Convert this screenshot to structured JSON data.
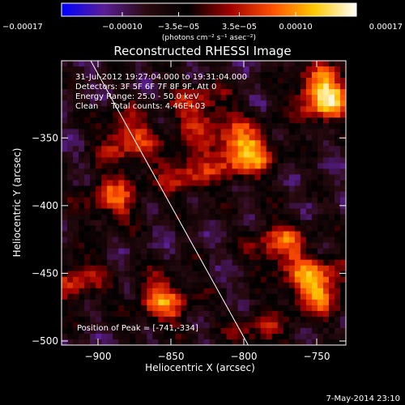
{
  "chart_data": {
    "type": "heatmap",
    "title": "Reconstructed RHESSI Image",
    "xlabel": "Heliocentric X (arcsec)",
    "ylabel": "Heliocentric Y (arcsec)",
    "xlim": [
      -925,
      -730
    ],
    "ylim": [
      -503,
      -293
    ],
    "x_ticks": [
      -900,
      -850,
      -800,
      -750
    ],
    "x_tick_labels": [
      "−900",
      "−850",
      "−800",
      "−750"
    ],
    "y_ticks": [
      -500,
      -450,
      -400,
      -350
    ],
    "y_tick_labels": [
      "−500",
      "−450",
      "−400",
      "−350"
    ],
    "colorbar": {
      "min": -0.00017,
      "max": 0.00017,
      "ticks": [
        -0.00017,
        -0.0001,
        -3.5e-05,
        3.5e-05,
        0.0001,
        0.00017
      ],
      "tick_labels": [
        "−0.00017",
        "−0.00010",
        "−3.5e−05",
        "3.5e−05",
        "0.00010",
        "0.00017"
      ],
      "unit_label": "(photons cm⁻² s⁻¹ asec⁻²)",
      "stops": [
        "#0000ff",
        "#5a1e96",
        "#2a0a10",
        "#000000",
        "#a00000",
        "#ff5000",
        "#ffc800",
        "#ffffff"
      ]
    },
    "annotations": [
      "31-Jul-2012 19:27:04.000 to 19:31:04.000",
      "Detectors: 3F 5F 6F 7F 8F 9F, Att 0",
      "Energy Range: 25.0 - 50.0 keV",
      "Clean     Total counts: 4.46E+03"
    ],
    "peak_label": "Position of Peak = [-741,-334]",
    "limb_line": {
      "x": [
        -905,
        -797
      ],
      "y": [
        -293,
        -503
      ]
    },
    "bright_regions": [
      {
        "x": -745,
        "y": -318,
        "intensity": 1.0
      },
      {
        "x": -800,
        "y": -360,
        "intensity": 0.9
      },
      {
        "x": -750,
        "y": -460,
        "intensity": 0.85
      },
      {
        "x": -775,
        "y": -430,
        "intensity": 0.6
      },
      {
        "x": -855,
        "y": -470,
        "intensity": 0.65
      },
      {
        "x": -830,
        "y": -330,
        "intensity": 0.55
      },
      {
        "x": -880,
        "y": -350,
        "intensity": 0.6
      },
      {
        "x": -890,
        "y": -395,
        "intensity": 0.55
      },
      {
        "x": -915,
        "y": -455,
        "intensity": 0.5
      },
      {
        "x": -840,
        "y": -375,
        "intensity": 0.5
      },
      {
        "x": -790,
        "y": -495,
        "intensity": 0.4
      }
    ],
    "footer": "7-May-2014 23:10"
  }
}
